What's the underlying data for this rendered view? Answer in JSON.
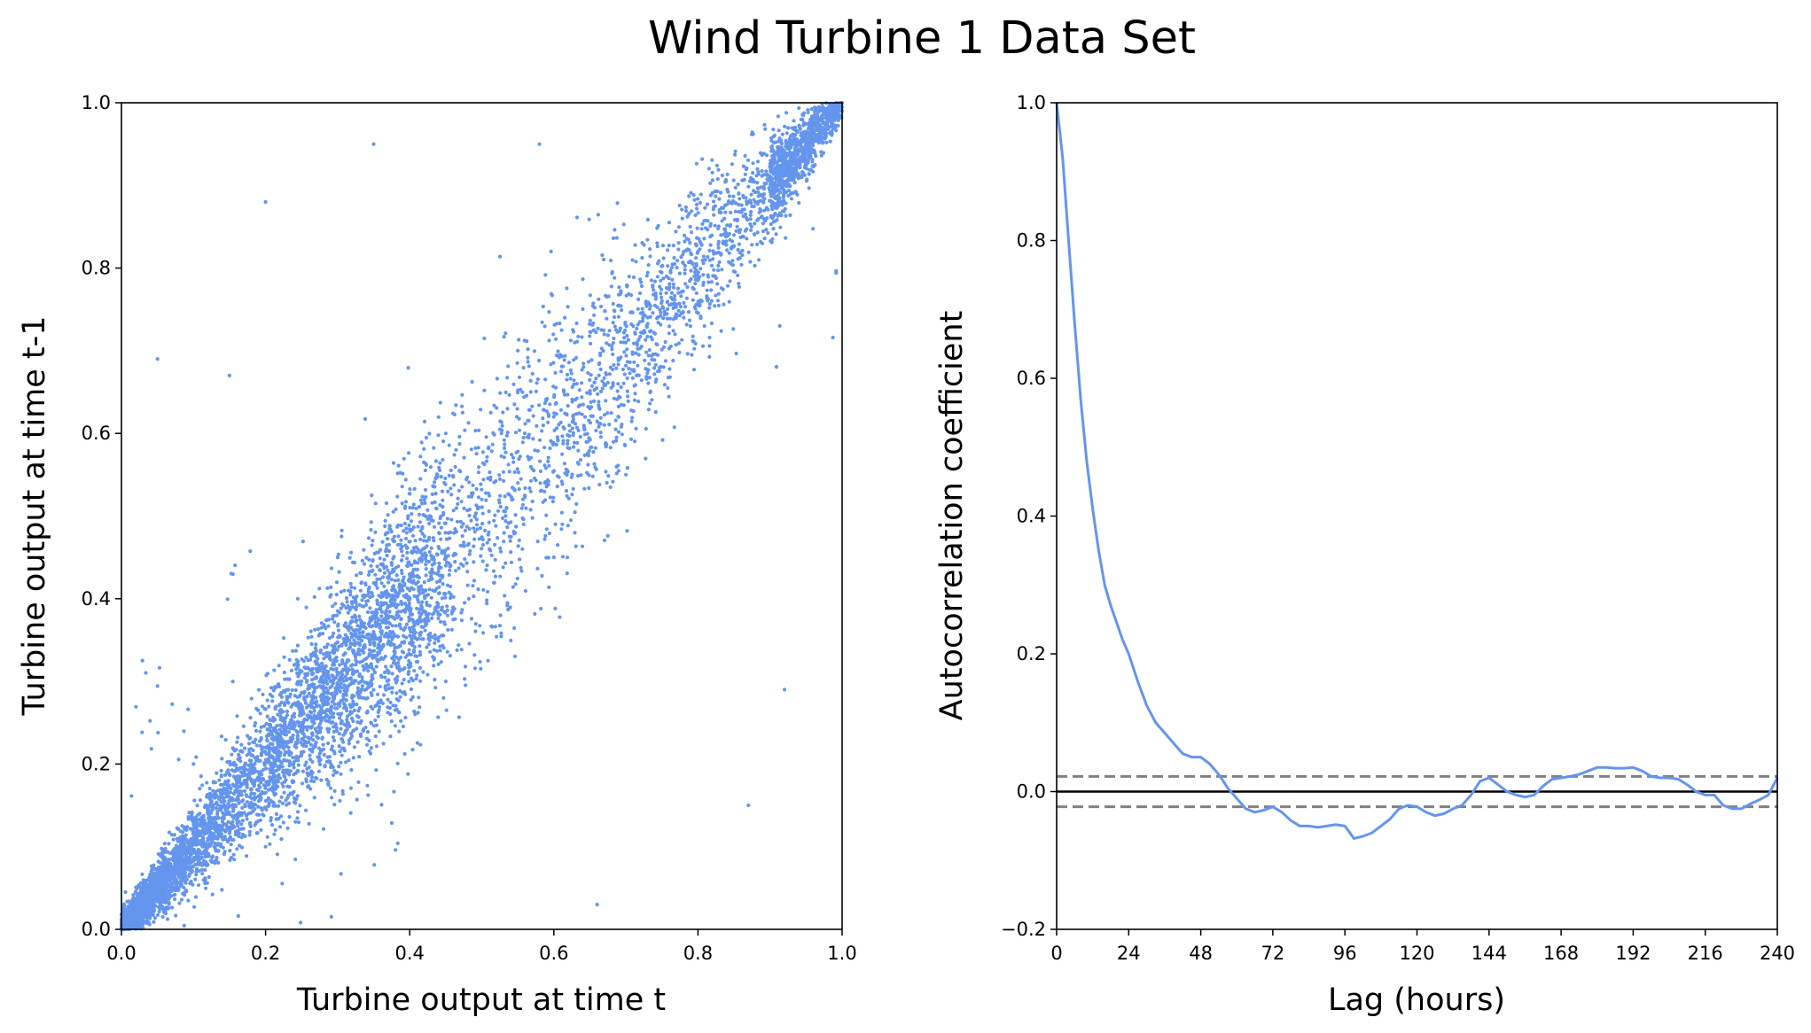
{
  "figure": {
    "title": "Wind Turbine 1 Data Set",
    "colors": {
      "series": "#6495ED",
      "zero_line": "#000000",
      "confidence_band": "#808080"
    }
  },
  "chart_data": [
    {
      "type": "scatter",
      "title": "",
      "xlabel": "Turbine output at time t",
      "ylabel": "Turbine output at time t-1",
      "xlim": [
        0,
        1.0
      ],
      "ylim": [
        0,
        1.0
      ],
      "xticks": [
        "0.0",
        "0.2",
        "0.4",
        "0.6",
        "0.8",
        "1.0"
      ],
      "yticks": [
        "0.0",
        "0.2",
        "0.4",
        "0.6",
        "0.8",
        "1.0"
      ],
      "grid": false,
      "legend": "none",
      "description_of_points": "lag-1 scatter of ~8000 normalized turbine outputs, concentrated along y = x, densest near 0 and near 1",
      "points": [
        [
          0.02,
          0.01
        ],
        [
          0.05,
          0.06
        ],
        [
          0.08,
          0.07
        ],
        [
          0.12,
          0.11
        ],
        [
          0.15,
          0.16
        ],
        [
          0.18,
          0.17
        ],
        [
          0.22,
          0.21
        ],
        [
          0.25,
          0.27
        ],
        [
          0.3,
          0.29
        ],
        [
          0.35,
          0.36
        ],
        [
          0.4,
          0.41
        ],
        [
          0.45,
          0.44
        ],
        [
          0.5,
          0.52
        ],
        [
          0.55,
          0.54
        ],
        [
          0.6,
          0.62
        ],
        [
          0.65,
          0.63
        ],
        [
          0.7,
          0.71
        ],
        [
          0.75,
          0.76
        ],
        [
          0.8,
          0.82
        ],
        [
          0.85,
          0.84
        ],
        [
          0.9,
          0.91
        ],
        [
          0.95,
          0.96
        ],
        [
          0.98,
          0.99
        ],
        [
          1.0,
          1.0
        ],
        [
          0.1,
          0.2
        ],
        [
          0.2,
          0.1
        ],
        [
          0.3,
          0.45
        ],
        [
          0.45,
          0.3
        ],
        [
          0.6,
          0.45
        ],
        [
          0.45,
          0.6
        ],
        [
          0.7,
          0.55
        ],
        [
          0.55,
          0.7
        ],
        [
          0.05,
          0.69
        ],
        [
          0.35,
          0.95
        ],
        [
          0.2,
          0.88
        ],
        [
          0.15,
          0.67
        ],
        [
          0.66,
          0.03
        ],
        [
          0.58,
          0.95
        ],
        [
          0.92,
          0.29
        ],
        [
          0.87,
          0.15
        ]
      ]
    },
    {
      "type": "line",
      "title": "",
      "xlabel": "Lag (hours)",
      "ylabel": "Autocorrelation coefficient",
      "xlim": [
        0,
        240
      ],
      "ylim": [
        -0.2,
        1.0
      ],
      "xticks": [
        "0",
        "24",
        "48",
        "72",
        "96",
        "120",
        "144",
        "168",
        "192",
        "216",
        "240"
      ],
      "yticks": [
        "−0.2",
        "0.0",
        "0.2",
        "0.4",
        "0.6",
        "0.8",
        "1.0"
      ],
      "grid": false,
      "legend": "none",
      "reference_lines": {
        "zero": 0.0,
        "confidence": [
          0.022,
          -0.022
        ]
      },
      "x": [
        0,
        2,
        4,
        6,
        8,
        10,
        12,
        14,
        16,
        18,
        20,
        22,
        24,
        27,
        30,
        33,
        36,
        39,
        42,
        45,
        48,
        51,
        54,
        57,
        60,
        63,
        66,
        69,
        72,
        75,
        78,
        81,
        84,
        87,
        90,
        93,
        96,
        99,
        102,
        105,
        108,
        111,
        114,
        117,
        120,
        123,
        126,
        129,
        132,
        135,
        138,
        141,
        144,
        147,
        150,
        153,
        156,
        159,
        162,
        165,
        168,
        171,
        174,
        177,
        180,
        183,
        186,
        189,
        192,
        195,
        198,
        201,
        204,
        207,
        210,
        213,
        216,
        219,
        222,
        225,
        228,
        231,
        234,
        237,
        240
      ],
      "y": [
        1.0,
        0.92,
        0.8,
        0.68,
        0.57,
        0.48,
        0.41,
        0.35,
        0.3,
        0.27,
        0.245,
        0.22,
        0.2,
        0.16,
        0.125,
        0.1,
        0.085,
        0.07,
        0.055,
        0.05,
        0.05,
        0.04,
        0.025,
        0.005,
        -0.01,
        -0.025,
        -0.03,
        -0.027,
        -0.022,
        -0.03,
        -0.042,
        -0.05,
        -0.05,
        -0.052,
        -0.05,
        -0.048,
        -0.05,
        -0.068,
        -0.065,
        -0.06,
        -0.05,
        -0.04,
        -0.025,
        -0.02,
        -0.022,
        -0.03,
        -0.035,
        -0.032,
        -0.025,
        -0.02,
        -0.005,
        0.015,
        0.02,
        0.01,
        0.0,
        -0.005,
        -0.008,
        -0.005,
        0.008,
        0.018,
        0.02,
        0.022,
        0.025,
        0.03,
        0.035,
        0.035,
        0.034,
        0.034,
        0.035,
        0.03,
        0.022,
        0.02,
        0.02,
        0.018,
        0.01,
        0.0,
        -0.005,
        -0.005,
        -0.02,
        -0.025,
        -0.025,
        -0.018,
        -0.012,
        -0.005,
        0.02
      ]
    }
  ]
}
